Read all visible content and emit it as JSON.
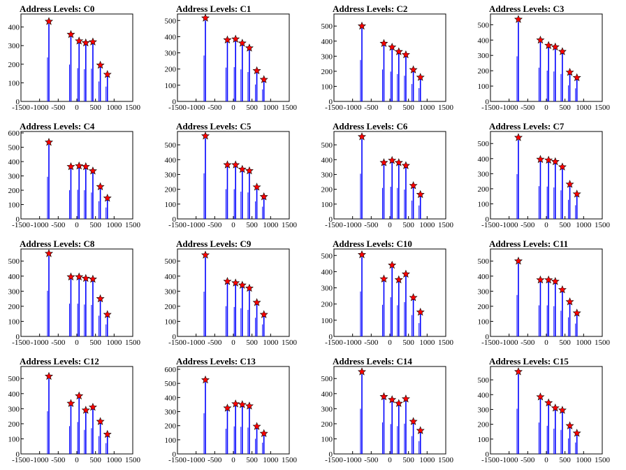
{
  "chart_data": [
    {
      "type": "bar",
      "title": "Address Levels: C0",
      "xlim": [
        -1500,
        1500
      ],
      "ylim": [
        0,
        470
      ],
      "yticks": [
        100,
        200,
        300,
        400
      ],
      "xticks": [
        -1500,
        -1000,
        -500,
        0,
        500,
        1000,
        1500
      ],
      "colors": {
        "histogram": "#0000ff",
        "peak_marker": "#ff0000"
      },
      "peaks": [
        {
          "x": -750,
          "y": 430
        },
        {
          "x": -160,
          "y": 360
        },
        {
          "x": 60,
          "y": 325
        },
        {
          "x": 240,
          "y": 315
        },
        {
          "x": 430,
          "y": 320
        },
        {
          "x": 630,
          "y": 195
        },
        {
          "x": 820,
          "y": 145
        }
      ]
    },
    {
      "type": "bar",
      "title": "Address Levels: C1",
      "xlim": [
        -1500,
        1500
      ],
      "ylim": [
        0,
        540
      ],
      "yticks": [
        100,
        200,
        300,
        400,
        500
      ],
      "xticks": [
        -1500,
        -1000,
        -500,
        0,
        500,
        1000,
        1500
      ],
      "colors": {
        "histogram": "#0000ff",
        "peak_marker": "#ff0000"
      },
      "peaks": [
        {
          "x": -750,
          "y": 515
        },
        {
          "x": -160,
          "y": 380
        },
        {
          "x": 60,
          "y": 385
        },
        {
          "x": 240,
          "y": 360
        },
        {
          "x": 430,
          "y": 330
        },
        {
          "x": 630,
          "y": 190
        },
        {
          "x": 820,
          "y": 135
        }
      ]
    },
    {
      "type": "bar",
      "title": "Address Levels: C2",
      "xlim": [
        -1500,
        1500
      ],
      "ylim": [
        0,
        580
      ],
      "yticks": [
        100,
        200,
        300,
        400,
        500
      ],
      "xticks": [
        -1500,
        -1000,
        -500,
        0,
        500,
        1000,
        1500
      ],
      "colors": {
        "histogram": "#0000ff",
        "peak_marker": "#ff0000"
      },
      "peaks": [
        {
          "x": -750,
          "y": 500
        },
        {
          "x": -160,
          "y": 385
        },
        {
          "x": 60,
          "y": 360
        },
        {
          "x": 240,
          "y": 330
        },
        {
          "x": 430,
          "y": 310
        },
        {
          "x": 630,
          "y": 210
        },
        {
          "x": 820,
          "y": 160
        }
      ]
    },
    {
      "type": "bar",
      "title": "Address Levels: C3",
      "xlim": [
        -1500,
        1500
      ],
      "ylim": [
        0,
        570
      ],
      "yticks": [
        100,
        200,
        300,
        400,
        500
      ],
      "xticks": [
        -1500,
        -1000,
        -500,
        0,
        500,
        1000,
        1500
      ],
      "colors": {
        "histogram": "#0000ff",
        "peak_marker": "#ff0000"
      },
      "peaks": [
        {
          "x": -750,
          "y": 535
        },
        {
          "x": -160,
          "y": 400
        },
        {
          "x": 60,
          "y": 365
        },
        {
          "x": 240,
          "y": 355
        },
        {
          "x": 430,
          "y": 325
        },
        {
          "x": 630,
          "y": 190
        },
        {
          "x": 820,
          "y": 155
        }
      ]
    },
    {
      "type": "bar",
      "title": "Address Levels: C4",
      "xlim": [
        -1500,
        1500
      ],
      "ylim": [
        0,
        610
      ],
      "yticks": [
        100,
        200,
        300,
        400,
        500,
        600
      ],
      "xticks": [
        -1500,
        -1000,
        -500,
        0,
        500,
        1000,
        1500
      ],
      "colors": {
        "histogram": "#0000ff",
        "peak_marker": "#ff0000"
      },
      "peaks": [
        {
          "x": -750,
          "y": 535
        },
        {
          "x": -160,
          "y": 365
        },
        {
          "x": 60,
          "y": 370
        },
        {
          "x": 240,
          "y": 365
        },
        {
          "x": 430,
          "y": 335
        },
        {
          "x": 630,
          "y": 225
        },
        {
          "x": 820,
          "y": 145
        }
      ]
    },
    {
      "type": "bar",
      "title": "Address Levels: C5",
      "xlim": [
        -1500,
        1500
      ],
      "ylim": [
        0,
        590
      ],
      "yticks": [
        100,
        200,
        300,
        400,
        500
      ],
      "xticks": [
        -1500,
        -1000,
        -500,
        0,
        500,
        1000,
        1500
      ],
      "colors": {
        "histogram": "#0000ff",
        "peak_marker": "#ff0000"
      },
      "peaks": [
        {
          "x": -750,
          "y": 560
        },
        {
          "x": -160,
          "y": 365
        },
        {
          "x": 60,
          "y": 365
        },
        {
          "x": 240,
          "y": 335
        },
        {
          "x": 430,
          "y": 325
        },
        {
          "x": 630,
          "y": 215
        },
        {
          "x": 820,
          "y": 150
        }
      ]
    },
    {
      "type": "bar",
      "title": "Address Levels: C6",
      "xlim": [
        -1500,
        1500
      ],
      "ylim": [
        0,
        590
      ],
      "yticks": [
        100,
        200,
        300,
        400,
        500
      ],
      "xticks": [
        -1500,
        -1000,
        -500,
        0,
        500,
        1000,
        1500
      ],
      "colors": {
        "histogram": "#0000ff",
        "peak_marker": "#ff0000"
      },
      "peaks": [
        {
          "x": -750,
          "y": 555
        },
        {
          "x": -160,
          "y": 380
        },
        {
          "x": 60,
          "y": 395
        },
        {
          "x": 240,
          "y": 380
        },
        {
          "x": 430,
          "y": 360
        },
        {
          "x": 630,
          "y": 225
        },
        {
          "x": 820,
          "y": 165
        }
      ]
    },
    {
      "type": "bar",
      "title": "Address Levels: C7",
      "xlim": [
        -1500,
        1500
      ],
      "ylim": [
        0,
        580
      ],
      "yticks": [
        100,
        200,
        300,
        400,
        500
      ],
      "xticks": [
        -1500,
        -1000,
        -500,
        0,
        500,
        1000,
        1500
      ],
      "colors": {
        "histogram": "#0000ff",
        "peak_marker": "#ff0000"
      },
      "peaks": [
        {
          "x": -750,
          "y": 540
        },
        {
          "x": -160,
          "y": 395
        },
        {
          "x": 60,
          "y": 390
        },
        {
          "x": 240,
          "y": 380
        },
        {
          "x": 430,
          "y": 345
        },
        {
          "x": 630,
          "y": 230
        },
        {
          "x": 820,
          "y": 165
        }
      ]
    },
    {
      "type": "bar",
      "title": "Address Levels: C8",
      "xlim": [
        -1500,
        1500
      ],
      "ylim": [
        0,
        580
      ],
      "yticks": [
        100,
        200,
        300,
        400,
        500
      ],
      "xticks": [
        -1500,
        -1000,
        -500,
        0,
        500,
        1000,
        1500
      ],
      "colors": {
        "histogram": "#0000ff",
        "peak_marker": "#ff0000"
      },
      "peaks": [
        {
          "x": -750,
          "y": 550
        },
        {
          "x": -160,
          "y": 395
        },
        {
          "x": 60,
          "y": 395
        },
        {
          "x": 240,
          "y": 385
        },
        {
          "x": 430,
          "y": 380
        },
        {
          "x": 630,
          "y": 250
        },
        {
          "x": 820,
          "y": 145
        }
      ]
    },
    {
      "type": "bar",
      "title": "Address Levels: C9",
      "xlim": [
        -1500,
        1500
      ],
      "ylim": [
        0,
        580
      ],
      "yticks": [
        100,
        200,
        300,
        400,
        500
      ],
      "xticks": [
        -1500,
        -1000,
        -500,
        0,
        500,
        1000,
        1500
      ],
      "colors": {
        "histogram": "#0000ff",
        "peak_marker": "#ff0000"
      },
      "peaks": [
        {
          "x": -750,
          "y": 540
        },
        {
          "x": -160,
          "y": 365
        },
        {
          "x": 60,
          "y": 355
        },
        {
          "x": 240,
          "y": 340
        },
        {
          "x": 430,
          "y": 320
        },
        {
          "x": 630,
          "y": 225
        },
        {
          "x": 820,
          "y": 145
        }
      ]
    },
    {
      "type": "bar",
      "title": "Address Levels: C10",
      "xlim": [
        -1500,
        1500
      ],
      "ylim": [
        0,
        540
      ],
      "yticks": [
        100,
        200,
        300,
        400,
        500
      ],
      "xticks": [
        -1500,
        -1000,
        -500,
        0,
        500,
        1000,
        1500
      ],
      "colors": {
        "histogram": "#0000ff",
        "peak_marker": "#ff0000"
      },
      "peaks": [
        {
          "x": -750,
          "y": 505
        },
        {
          "x": -160,
          "y": 355
        },
        {
          "x": 60,
          "y": 440
        },
        {
          "x": 240,
          "y": 350
        },
        {
          "x": 430,
          "y": 385
        },
        {
          "x": 630,
          "y": 240
        },
        {
          "x": 820,
          "y": 150
        }
      ]
    },
    {
      "type": "bar",
      "title": "Address Levels: C11",
      "xlim": [
        -1500,
        1500
      ],
      "ylim": [
        0,
        580
      ],
      "yticks": [
        100,
        200,
        300,
        400,
        500
      ],
      "xticks": [
        -1500,
        -1000,
        -500,
        0,
        500,
        1000,
        1500
      ],
      "colors": {
        "histogram": "#0000ff",
        "peak_marker": "#ff0000"
      },
      "peaks": [
        {
          "x": -750,
          "y": 500
        },
        {
          "x": -160,
          "y": 375
        },
        {
          "x": 60,
          "y": 375
        },
        {
          "x": 240,
          "y": 365
        },
        {
          "x": 430,
          "y": 310
        },
        {
          "x": 630,
          "y": 230
        },
        {
          "x": 820,
          "y": 155
        }
      ]
    },
    {
      "type": "bar",
      "title": "Address Levels: C12",
      "xlim": [
        -1500,
        1500
      ],
      "ylim": [
        0,
        580
      ],
      "yticks": [
        100,
        200,
        300,
        400,
        500
      ],
      "xticks": [
        -1500,
        -1000,
        -500,
        0,
        500,
        1000,
        1500
      ],
      "colors": {
        "histogram": "#0000ff",
        "peak_marker": "#ff0000"
      },
      "peaks": [
        {
          "x": -750,
          "y": 515
        },
        {
          "x": -160,
          "y": 335
        },
        {
          "x": 60,
          "y": 385
        },
        {
          "x": 240,
          "y": 290
        },
        {
          "x": 430,
          "y": 310
        },
        {
          "x": 630,
          "y": 215
        },
        {
          "x": 820,
          "y": 130
        }
      ]
    },
    {
      "type": "bar",
      "title": "Address Levels: C13",
      "xlim": [
        -1500,
        1500
      ],
      "ylim": [
        0,
        620
      ],
      "yticks": [
        100,
        200,
        300,
        400,
        500,
        600
      ],
      "xticks": [
        -1500,
        -1000,
        -500,
        0,
        500,
        1000,
        1500
      ],
      "colors": {
        "histogram": "#0000ff",
        "peak_marker": "#ff0000"
      },
      "peaks": [
        {
          "x": -750,
          "y": 525
        },
        {
          "x": -160,
          "y": 325
        },
        {
          "x": 60,
          "y": 355
        },
        {
          "x": 240,
          "y": 350
        },
        {
          "x": 430,
          "y": 340
        },
        {
          "x": 630,
          "y": 195
        },
        {
          "x": 820,
          "y": 145
        }
      ]
    },
    {
      "type": "bar",
      "title": "Address Levels: C14",
      "xlim": [
        -1500,
        1500
      ],
      "ylim": [
        0,
        580
      ],
      "yticks": [
        100,
        200,
        300,
        400,
        500
      ],
      "xticks": [
        -1500,
        -1000,
        -500,
        0,
        500,
        1000,
        1500
      ],
      "colors": {
        "histogram": "#0000ff",
        "peak_marker": "#ff0000"
      },
      "peaks": [
        {
          "x": -750,
          "y": 545
        },
        {
          "x": -160,
          "y": 380
        },
        {
          "x": 60,
          "y": 360
        },
        {
          "x": 240,
          "y": 335
        },
        {
          "x": 430,
          "y": 365
        },
        {
          "x": 630,
          "y": 215
        },
        {
          "x": 820,
          "y": 155
        }
      ]
    },
    {
      "type": "bar",
      "title": "Address Levels: C15",
      "xlim": [
        -1500,
        1500
      ],
      "ylim": [
        0,
        590
      ],
      "yticks": [
        100,
        200,
        300,
        400,
        500
      ],
      "xticks": [
        -1500,
        -1000,
        -500,
        0,
        500,
        1000,
        1500
      ],
      "colors": {
        "histogram": "#0000ff",
        "peak_marker": "#ff0000"
      },
      "peaks": [
        {
          "x": -750,
          "y": 555
        },
        {
          "x": -160,
          "y": 385
        },
        {
          "x": 60,
          "y": 345
        },
        {
          "x": 240,
          "y": 310
        },
        {
          "x": 430,
          "y": 295
        },
        {
          "x": 630,
          "y": 190
        },
        {
          "x": 820,
          "y": 140
        }
      ]
    }
  ]
}
